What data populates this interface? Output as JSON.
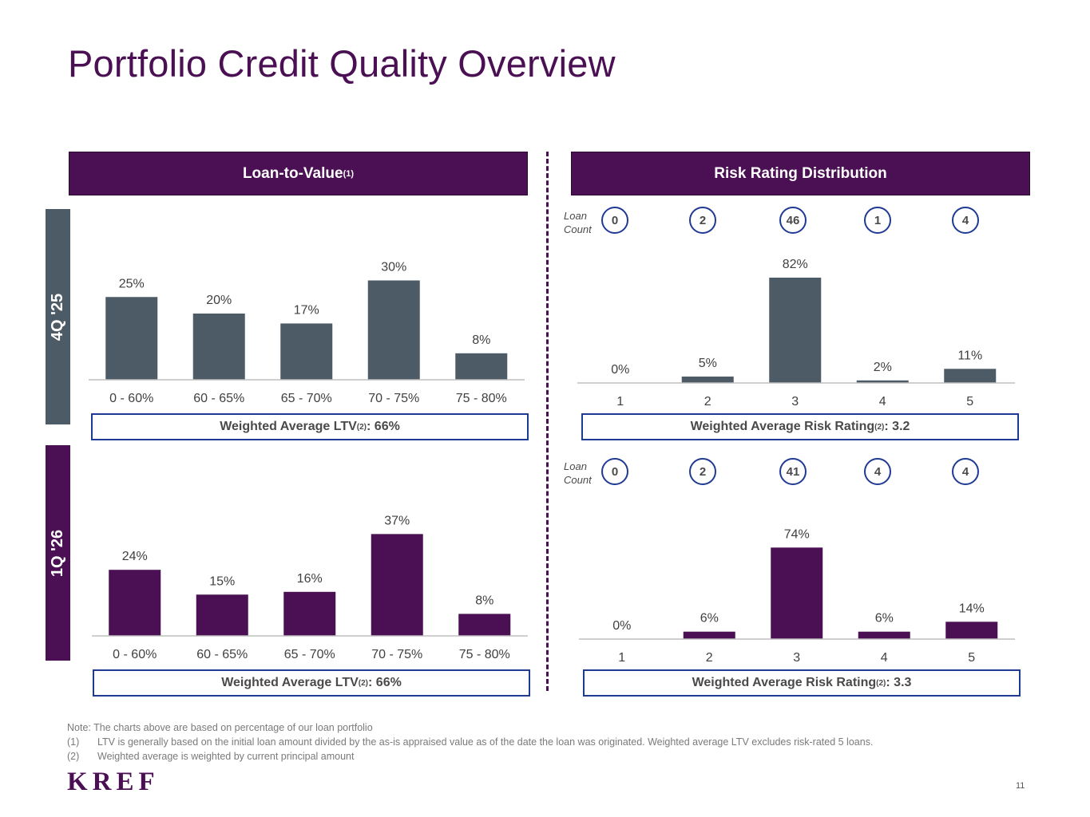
{
  "title": "Portfolio Credit Quality Overview",
  "headers": {
    "ltv": "Loan-to-Value",
    "ltv_sup": "(1)",
    "risk": "Risk Rating Distribution"
  },
  "periods": {
    "top": "4Q '25",
    "bottom": "1Q '26"
  },
  "loan_count_label_1": "Loan",
  "loan_count_label_2": "Count",
  "loan_counts": {
    "top": [
      "0",
      "2",
      "46",
      "1",
      "4"
    ],
    "bottom": [
      "0",
      "2",
      "41",
      "4",
      "4"
    ]
  },
  "summaries": {
    "ltv_prefix": "Weighted Average LTV",
    "risk_prefix": "Weighted Average Risk Rating",
    "sup": "(2)",
    "ltv_top_value": ": 66%",
    "ltv_bottom_value": ": 66%",
    "risk_top_value": ": 3.2",
    "risk_bottom_value": ": 3.3"
  },
  "colors": {
    "purple": "#4b1054",
    "slate": "#4d5b66",
    "navy": "#1f3a93"
  },
  "chart_data": [
    {
      "type": "bar",
      "period": "4Q '25",
      "categories": [
        "0 - 60%",
        "60 - 65%",
        "65 - 70%",
        "70 - 75%",
        "75 - 80%"
      ],
      "values": [
        25,
        20,
        17,
        30,
        8
      ],
      "labels": [
        "25%",
        "20%",
        "17%",
        "30%",
        "8%"
      ],
      "color": "#4d5b66"
    },
    {
      "type": "bar",
      "period": "4Q '25",
      "categories": [
        "1",
        "2",
        "3",
        "4",
        "5"
      ],
      "values": [
        0,
        5,
        82,
        2,
        11
      ],
      "labels": [
        "0%",
        "5%",
        "82%",
        "2%",
        "11%"
      ],
      "color": "#4d5b66"
    },
    {
      "type": "bar",
      "period": "1Q '26",
      "categories": [
        "0 - 60%",
        "60 - 65%",
        "65 - 70%",
        "70 - 75%",
        "75 - 80%"
      ],
      "values": [
        24,
        15,
        16,
        37,
        8
      ],
      "labels": [
        "24%",
        "15%",
        "16%",
        "37%",
        "8%"
      ],
      "color": "#4b1054"
    },
    {
      "type": "bar",
      "period": "1Q '26",
      "categories": [
        "1",
        "2",
        "3",
        "4",
        "5"
      ],
      "values": [
        0,
        6,
        74,
        6,
        14
      ],
      "labels": [
        "0%",
        "6%",
        "74%",
        "6%",
        "14%"
      ],
      "color": "#4b1054"
    }
  ],
  "notes": {
    "note": "Note: The charts above are based on percentage of our loan portfolio",
    "n1_num": "(1)",
    "n1": "LTV is generally based on the initial loan amount divided by the as-is appraised value as of the date the loan was originated. Weighted average LTV excludes risk-rated 5 loans.",
    "n2_num": "(2)",
    "n2": "Weighted average is weighted by current principal amount"
  },
  "logo": "KREF",
  "page_number": "11"
}
